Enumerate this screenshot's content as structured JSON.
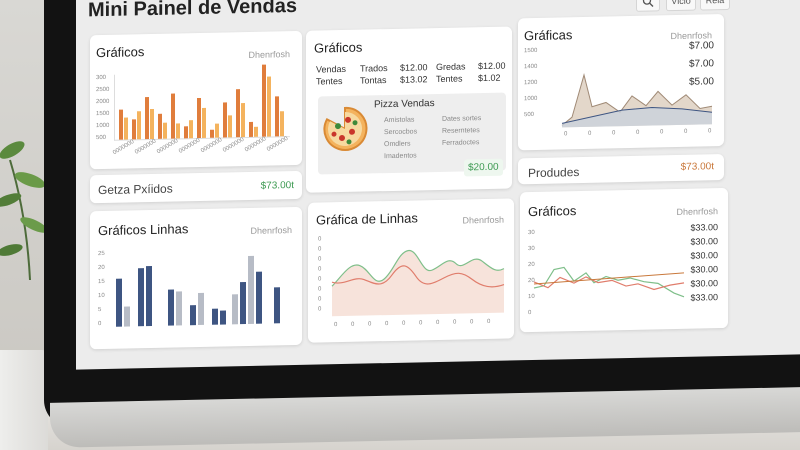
{
  "app": {
    "title": "Mini Painel de Vendas",
    "buttons": [
      "Vісіо",
      "Rela"
    ]
  },
  "colors": {
    "orange_dark": "#e07d3c",
    "orange_light": "#f4b35e",
    "navy": "#3e5582",
    "gray_bar": "#b7bcc6",
    "green_text": "#3d9a52",
    "orange_text": "#c9783b"
  },
  "card1": {
    "title": "Gráficos",
    "sub": "Dhenrfosh",
    "yticks": [
      "300",
      "2500",
      "2000",
      "1500",
      "1000",
      "500"
    ],
    "xticks": [
      "0000000",
      "0000000",
      "0000000",
      "0000000",
      "0000000",
      "0000000",
      "0000000",
      "0000000"
    ]
  },
  "card2": {
    "title": "Gráficos",
    "rows": [
      [
        "Vendas",
        "Trados",
        "$12.00",
        "Gredas",
        "$12.00"
      ],
      [
        "Tentes",
        "Tontas",
        "$13.02",
        "Tentes",
        "$1.02"
      ]
    ],
    "pizza_title": "Pizza Vendas",
    "pizza_left": [
      "Amistolas",
      "Sercocbos",
      "Omdlers",
      "Imadentos"
    ],
    "pizza_right": [
      "Dates sortes",
      "Reserntetes",
      "Ferradoctes"
    ],
    "total": "$20.00"
  },
  "card3": {
    "title": "Gráficas",
    "sub": "Dhenrfosh",
    "values": [
      "$7.00",
      "$7.00",
      "$5.00"
    ],
    "yticks": [
      "1500",
      "1400",
      "1200",
      "1000",
      "500"
    ],
    "xticks": [
      "0",
      "0",
      "0",
      "0",
      "0",
      "0",
      "0"
    ]
  },
  "strip1": {
    "label": "Getza Pxíidos",
    "value": "$73.00t"
  },
  "strip2": {
    "label": "Produdes",
    "value": "$73.00t"
  },
  "card4": {
    "title": "Gráficos Linhas",
    "sub": "Dhenrfosh",
    "yticks": [
      "25",
      "20",
      "15",
      "10",
      "5",
      "0"
    ]
  },
  "card5": {
    "title": "Gráfica de Linhas",
    "sub": "Dhenrfosh",
    "yticks": [
      "0",
      "0",
      "0",
      "0",
      "0",
      "0",
      "0",
      "0"
    ],
    "xticks": [
      "0",
      "0",
      "0",
      "0",
      "0",
      "0",
      "0",
      "0",
      "0",
      "0"
    ]
  },
  "card6": {
    "title": "Gráficos",
    "sub": "Dhenrfosh",
    "values": [
      "$33.00",
      "$30.00",
      "$30.00",
      "$30.00",
      "$30.00",
      "$33.00"
    ],
    "yticks": [
      "30",
      "30",
      "20",
      "20",
      "10",
      "0"
    ]
  }
}
